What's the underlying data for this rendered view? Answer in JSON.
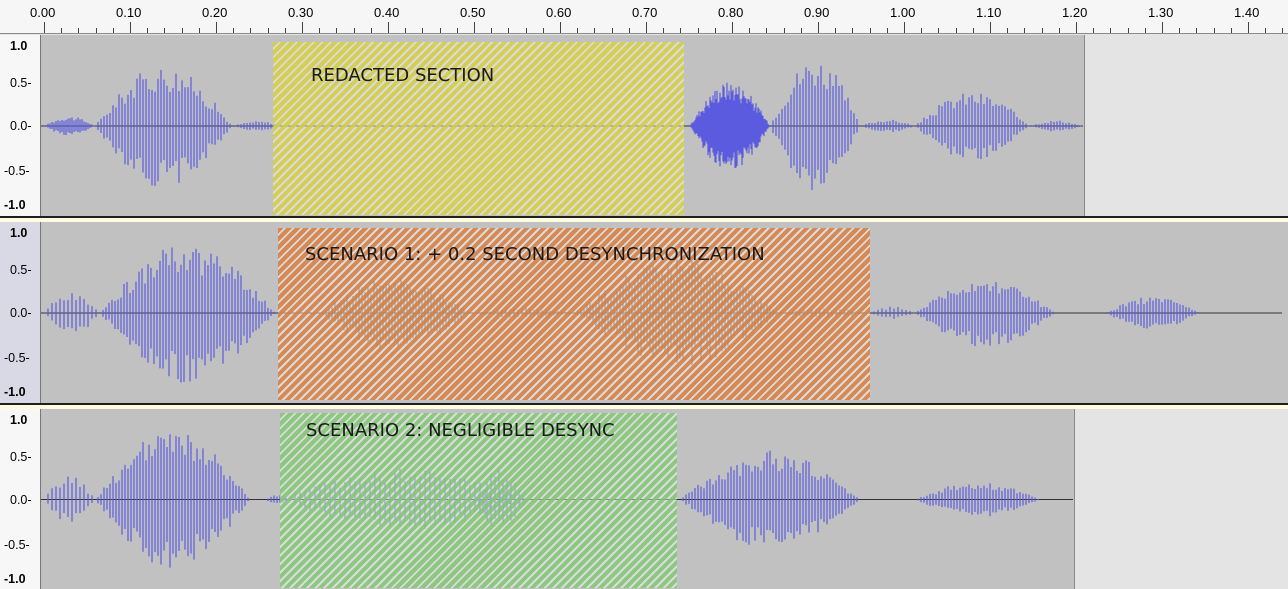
{
  "ruler": {
    "labels": [
      "0.00",
      "0.10",
      "0.20",
      "0.30",
      "0.40",
      "0.50",
      "0.60",
      "0.70",
      "0.80",
      "0.90",
      "1.00",
      "1.10",
      "1.20",
      "1.30",
      "1.40"
    ]
  },
  "tracks": [
    {
      "id": "original",
      "y_labels": [
        "1.0",
        "0.5-",
        "0.0-",
        "-0.5-",
        "-1.0"
      ],
      "overlay_label": "REDACTED SECTION",
      "overlay_color": "#d6cf4a"
    },
    {
      "id": "scenario1",
      "y_labels": [
        "1.0",
        "0.5-",
        "0.0-",
        "-0.5-",
        "-1.0"
      ],
      "overlay_label": "SCENARIO 1: + 0.2 SECOND DESYNCHRONIZATION",
      "overlay_color": "#d9844a"
    },
    {
      "id": "scenario2",
      "y_labels": [
        "1.0",
        "0.5-",
        "0.0-",
        "-0.5-",
        "-1.0"
      ],
      "overlay_label": "SCENARIO 2: NEGLIGIBLE DESYNC",
      "overlay_color": "#88c87a"
    }
  ],
  "colors": {
    "waveform": "#5b5be0",
    "waveform_muted": "#5f5f5f",
    "track_bg": "#c1c1c1"
  }
}
